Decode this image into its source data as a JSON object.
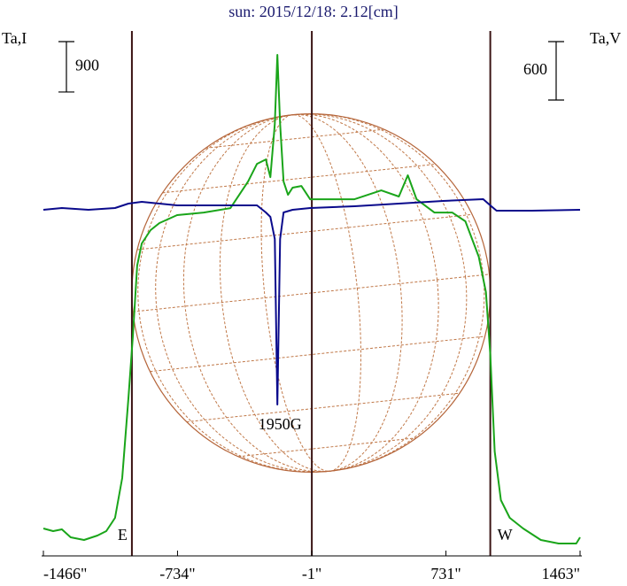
{
  "chart_data": {
    "type": "line",
    "title": "sun: 2015/12/18: 2.12[cm]",
    "ylabel": "Ta,I",
    "y2label": "Ta,V",
    "xlim": [
      -1466,
      1463
    ],
    "xticks": [
      {
        "value": -1466,
        "label": "-1466\""
      },
      {
        "value": -734,
        "label": "-734\""
      },
      {
        "value": -1,
        "label": "-1\""
      },
      {
        "value": 731,
        "label": "731\""
      },
      {
        "value": 1463,
        "label": "1463\""
      }
    ],
    "ylim": [
      0,
      9370
    ],
    "y2lim": [
      -3554,
      1836
    ],
    "vlines": [
      -983,
      -1,
      973
    ],
    "limb_labels": [
      {
        "text": "E",
        "x": -983
      },
      {
        "text": "W",
        "x": 973
      }
    ],
    "scale_bars": [
      {
        "value": 900
      },
      {
        "value": 600,
        "axis": "y2"
      }
    ],
    "annotations": [
      {
        "text": "1950G",
        "x": -174
      }
    ],
    "series": [
      {
        "color": "#1aa51a",
        "x": [
          -1466,
          -1413,
          -1365,
          -1317,
          -1244,
          -1171,
          -1123,
          -1075,
          -1036,
          -1002,
          -978,
          -954,
          -929,
          -881,
          -833,
          -736,
          -591,
          -445,
          -349,
          -300,
          -252,
          -227,
          -203,
          -189,
          -174,
          -155,
          -131,
          -106,
          -58,
          -10,
          87,
          232,
          378,
          474,
          523,
          571,
          668,
          765,
          837,
          910,
          949,
          973,
          997,
          1031,
          1079,
          1152,
          1249,
          1346,
          1442,
          1463
        ],
        "values": [
          490,
          442,
          474,
          332,
          284,
          363,
          442,
          679,
          1390,
          2812,
          3918,
          5182,
          5577,
          5814,
          5941,
          6083,
          6130,
          6209,
          6683,
          6999,
          7078,
          6762,
          7710,
          8943,
          7710,
          6683,
          6446,
          6573,
          6604,
          6367,
          6367,
          6367,
          6525,
          6415,
          6794,
          6367,
          6130,
          6130,
          5972,
          5340,
          4708,
          3602,
          1864,
          995,
          679,
          490,
          284,
          221,
          221,
          332
        ]
      },
      {
        "color": "#0a0a8c",
        "axis": "y2",
        "x": [
          -1466,
          -1365,
          -1220,
          -1075,
          -1002,
          -929,
          -736,
          -494,
          -300,
          -252,
          -227,
          -203,
          -189,
          -174,
          -155,
          -106,
          -10,
          232,
          474,
          716,
          934,
          973,
          1007,
          1200,
          1463
        ],
        "values": [
          0,
          18,
          0,
          18,
          64,
          82,
          45,
          45,
          45,
          -27,
          -73,
          -300,
          -2000,
          -300,
          -27,
          0,
          18,
          36,
          64,
          91,
          109,
          45,
          -9,
          -9,
          0
        ]
      }
    ]
  }
}
